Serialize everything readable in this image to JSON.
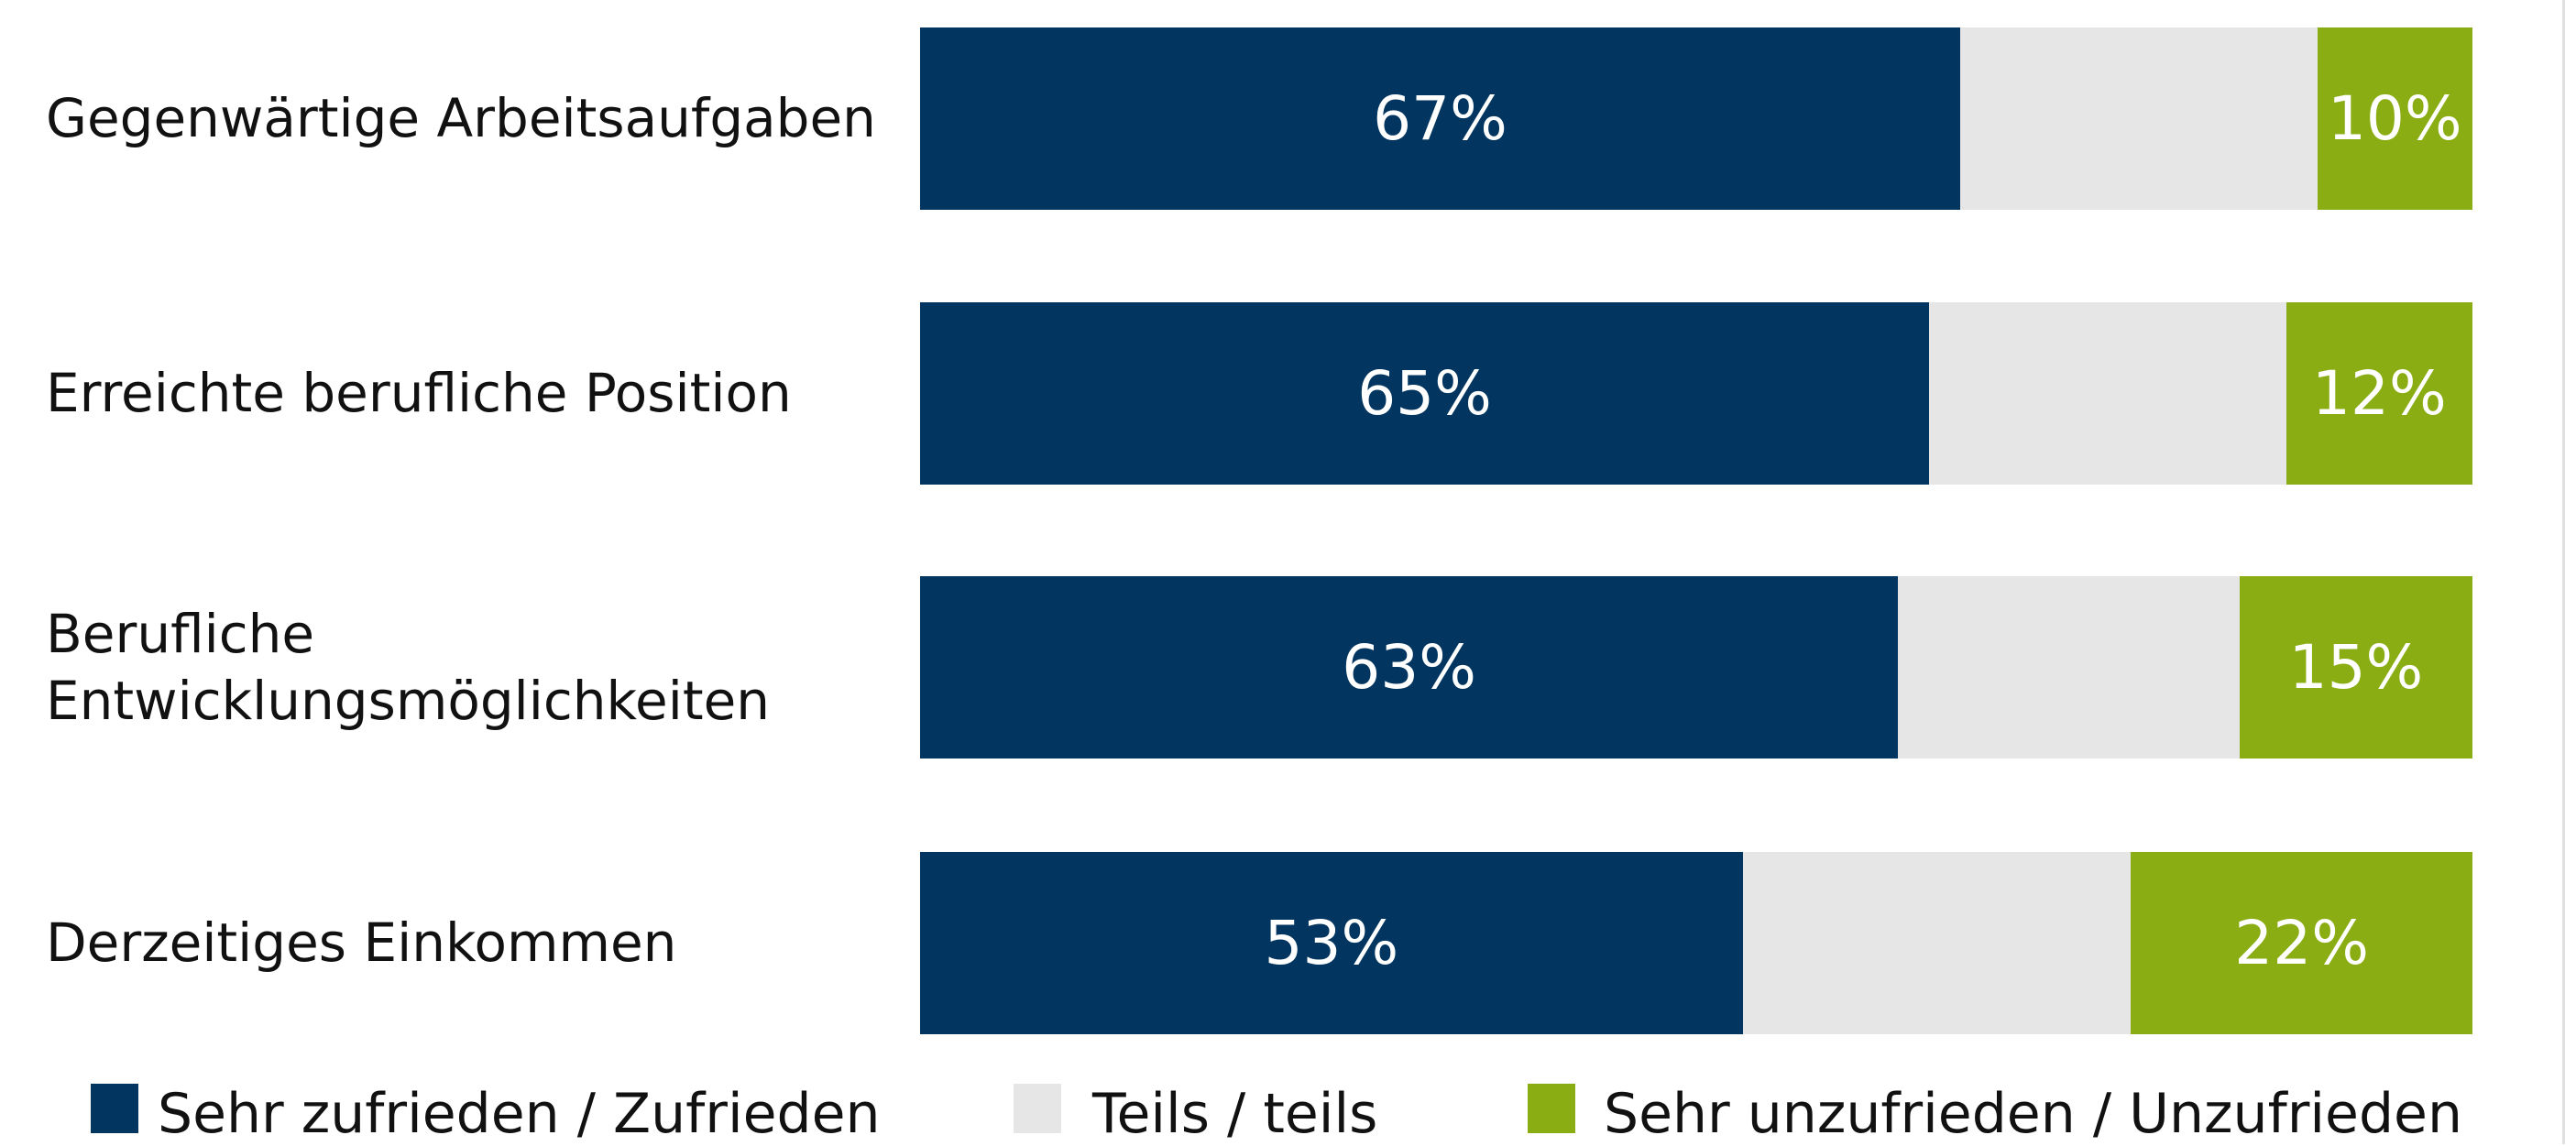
{
  "chart_data": {
    "type": "stacked-bar-horizontal",
    "categories": [
      "Gegenwärtige Arbeitsaufgaben",
      "Erreichte berufliche Position",
      "Berufliche Entwicklungsmöglichkeiten",
      "Derzeitiges Einkommen"
    ],
    "xlim": [
      0,
      100
    ],
    "series": [
      {
        "name": "Sehr zufrieden / Zufrieden",
        "color": "#02355f",
        "values": [
          67,
          65,
          63,
          53
        ],
        "value_labels": [
          "67%",
          "65%",
          "63%",
          "53%"
        ]
      },
      {
        "name": "Teils / teils",
        "color": "#e6e6e6",
        "values": [
          23,
          23,
          22,
          25
        ]
      },
      {
        "name": "Sehr unzufrieden / Unzufrieden",
        "color": "#8aad14",
        "values": [
          10,
          12,
          15,
          22
        ],
        "value_labels": [
          "10%",
          "12%",
          "15%",
          "22%"
        ]
      }
    ]
  }
}
